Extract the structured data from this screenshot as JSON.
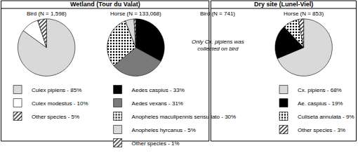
{
  "headers": [
    "Wetland (Tour du Valat)",
    "Dry site (Lunel-Viel)"
  ],
  "chart_data": [
    {
      "type": "pie",
      "title": "Bird (N = 1,598)",
      "categories": [
        "Culex pipiens - 85%",
        "Culex modestus - 10%",
        "Other species - 5%"
      ],
      "values": [
        85,
        10,
        5
      ],
      "colors": [
        "#d9d9d9",
        "#ffffff",
        "#ffffff"
      ],
      "marker": [
        "solid",
        "solid",
        "hatched"
      ],
      "legend": "bottom"
    },
    {
      "type": "pie",
      "title": "Horse (N = 133,068)",
      "categories": [
        "Aedes caspius - 33%",
        "Aedes vexans - 31%",
        "Anopheles maculipennis sensu lato - 30%",
        "Anopheles hyrcanus - 5%",
        "Other species - 1%"
      ],
      "values": [
        33,
        31,
        30,
        5,
        1
      ],
      "colors": [
        "#000000",
        "#7a7a7a",
        "#ffffff",
        "#d9d9d9",
        "#ffffff"
      ],
      "marker": [
        "solid",
        "solid",
        "dotted",
        "solid",
        "hatched"
      ],
      "legend": "bottom"
    },
    {
      "type": "pie",
      "title": "Bird (N = 741)",
      "categories": [],
      "values": [],
      "annotations": [
        "Only Cx. pipiens was",
        "collected on bird"
      ]
    },
    {
      "type": "pie",
      "title": "Horse (N = 853)",
      "categories": [
        "Cx. pipiens - 68%",
        "Ae. caspius - 19%",
        "Culiseta annulata - 9%",
        "Other species - 3%"
      ],
      "values": [
        68,
        19,
        9,
        3
      ],
      "colors": [
        "#d9d9d9",
        "#000000",
        "#ffffff",
        "#ffffff"
      ],
      "marker": [
        "solid",
        "solid",
        "dotted",
        "hatched"
      ],
      "legend": "bottom"
    }
  ]
}
